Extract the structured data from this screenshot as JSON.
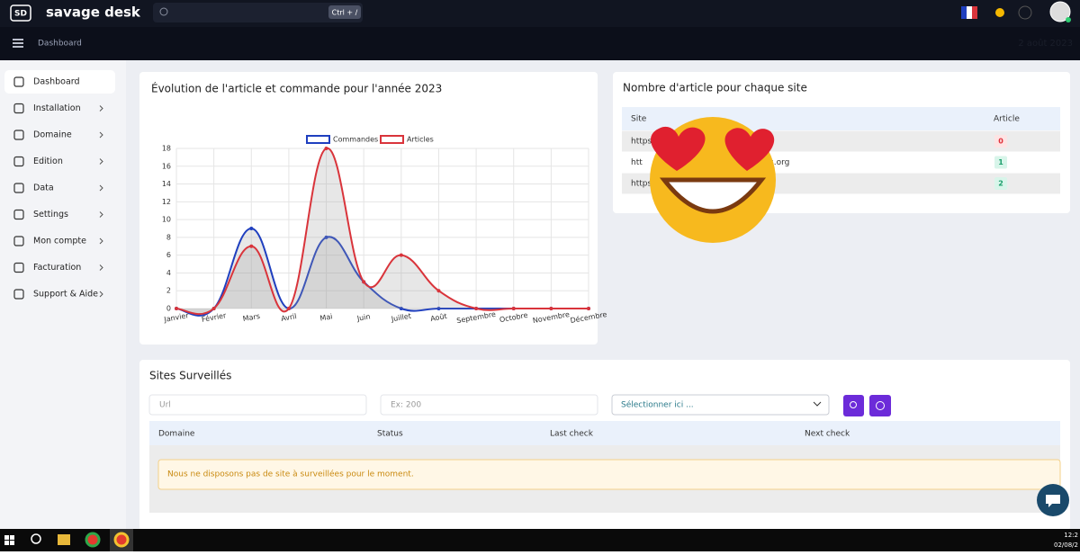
{
  "topbar": {
    "logo": "SD",
    "brand": "savage desk",
    "shortcut": "Ctrl + /"
  },
  "subbar": {
    "page": "Dashboard",
    "date": "2 août 2023"
  },
  "sidebar": {
    "items": [
      "Dashboard",
      "Installation",
      "Domaine",
      "Edition",
      "Data",
      "Settings",
      "Mon compte",
      "Facturation",
      "Support & Aide"
    ]
  },
  "chart": {
    "type": "line",
    "title": "Évolution de l'article et commande pour l'année 2023",
    "categories": [
      "Janvier",
      "Février",
      "Mars",
      "Avril",
      "Mai",
      "Juin",
      "Juillet",
      "Août",
      "Septembre",
      "Octobre",
      "Novembre",
      "Décembre"
    ],
    "series": [
      {
        "name": "Commandes",
        "color": "#1f3fbf",
        "values": [
          0,
          0,
          9,
          0,
          8,
          3,
          0,
          0,
          0,
          0,
          0,
          0
        ]
      },
      {
        "name": "Articles",
        "color": "#d9343b",
        "values": [
          0,
          0,
          7,
          0,
          18,
          3,
          6,
          2,
          0,
          0,
          0,
          0
        ]
      }
    ],
    "ylim": [
      0,
      18
    ],
    "yticks": [
      0,
      2,
      4,
      6,
      8,
      10,
      12,
      14,
      16,
      18
    ],
    "grid": true,
    "legend": "top"
  },
  "site_table": {
    "title": "Nombre d'article pour chaque site",
    "columns": [
      "Site",
      "Article"
    ],
    "rows": [
      {
        "site": "https://t",
        "count": 0
      },
      {
        "site": "htt",
        "site_tail": "res.org",
        "count": 1
      },
      {
        "site": "https",
        "count": 2
      }
    ]
  },
  "monitor": {
    "title": "Sites Surveillés",
    "url_placeholder": "Url",
    "code_placeholder": "Ex: 200",
    "select": "Sélectionner ici ...",
    "columns": [
      "Domaine",
      "Status",
      "Last check",
      "Next check"
    ],
    "empty": "Nous ne disposons pas de site à surveillées pour le moment."
  },
  "taskbar": {
    "time": "12:2",
    "date": "02/08/2"
  }
}
